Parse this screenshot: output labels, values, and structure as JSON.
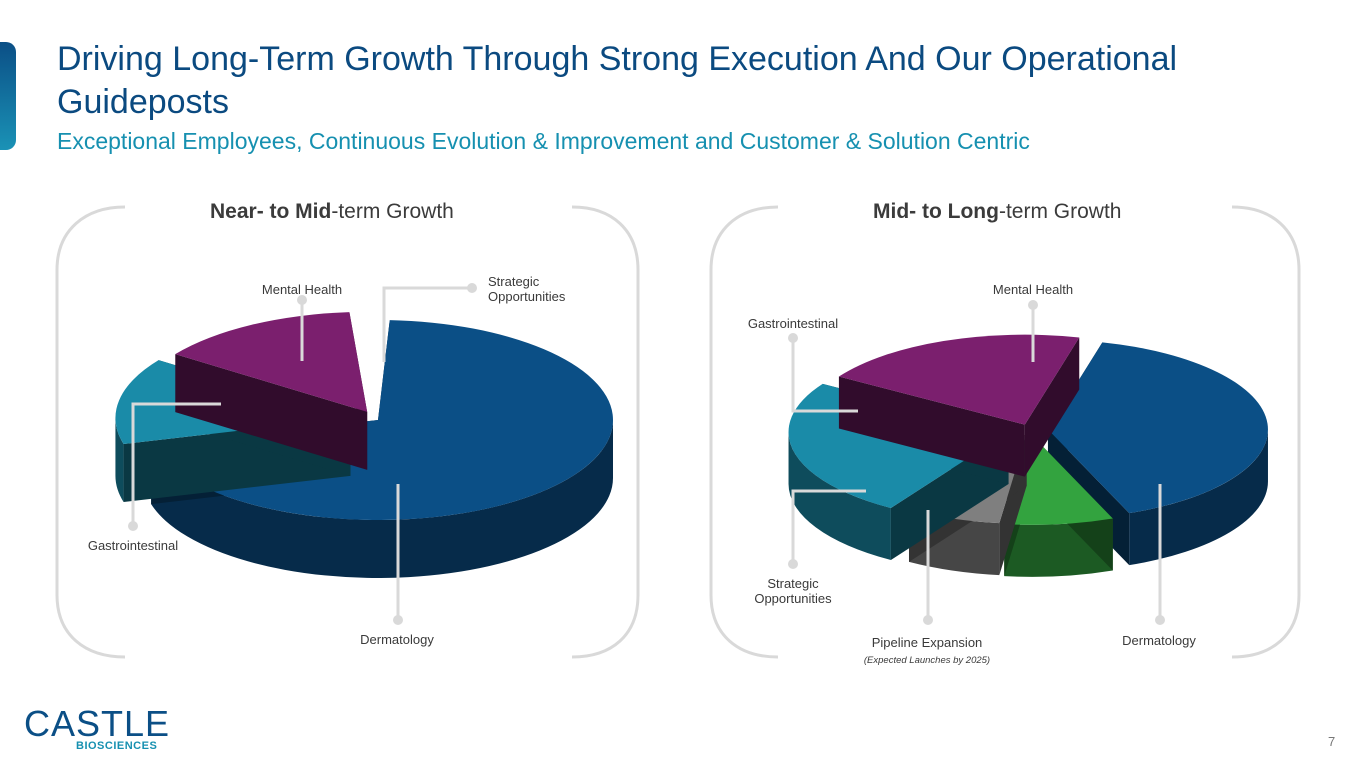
{
  "header": {
    "title": "Driving Long-Term Growth Through Strong Execution And Our Operational Guideposts",
    "subtitle": "Exceptional Employees, Continuous Evolution & Improvement and Customer & Solution Centric"
  },
  "chart_data": [
    {
      "type": "pie",
      "title_bold": "Near- to Mid",
      "title_rest": "-term Growth",
      "slices": [
        {
          "label": "Dermatology",
          "value": 70,
          "color": "#0b4f86"
        },
        {
          "label": "Gastrointestinal",
          "value": 14,
          "color": "#1a8ba8"
        },
        {
          "label": "Mental Health",
          "value": 14,
          "color": "#7b1f6e"
        },
        {
          "label": "Strategic Opportunities",
          "value": 2,
          "color": "#ffffff"
        }
      ]
    },
    {
      "type": "pie",
      "title_bold": "Mid- to Long",
      "title_rest": "-term Growth",
      "slices": [
        {
          "label": "Dermatology",
          "value": 40,
          "color": "#0b4f86"
        },
        {
          "label": "Pipeline Expansion",
          "note": "Expected Launches by 2025",
          "value": 8,
          "color": "#33a33f"
        },
        {
          "label": "Strategic Opportunities",
          "value": 7,
          "color": "#7f7f7f"
        },
        {
          "label": "Gastrointestinal",
          "value": 25,
          "color": "#1a8ba8"
        },
        {
          "label": "Mental Health",
          "value": 20,
          "color": "#7b1f6e"
        }
      ]
    }
  ],
  "logo": {
    "word": "CASTLE",
    "sub": "BIOSCIENCES"
  },
  "page_number": "7"
}
